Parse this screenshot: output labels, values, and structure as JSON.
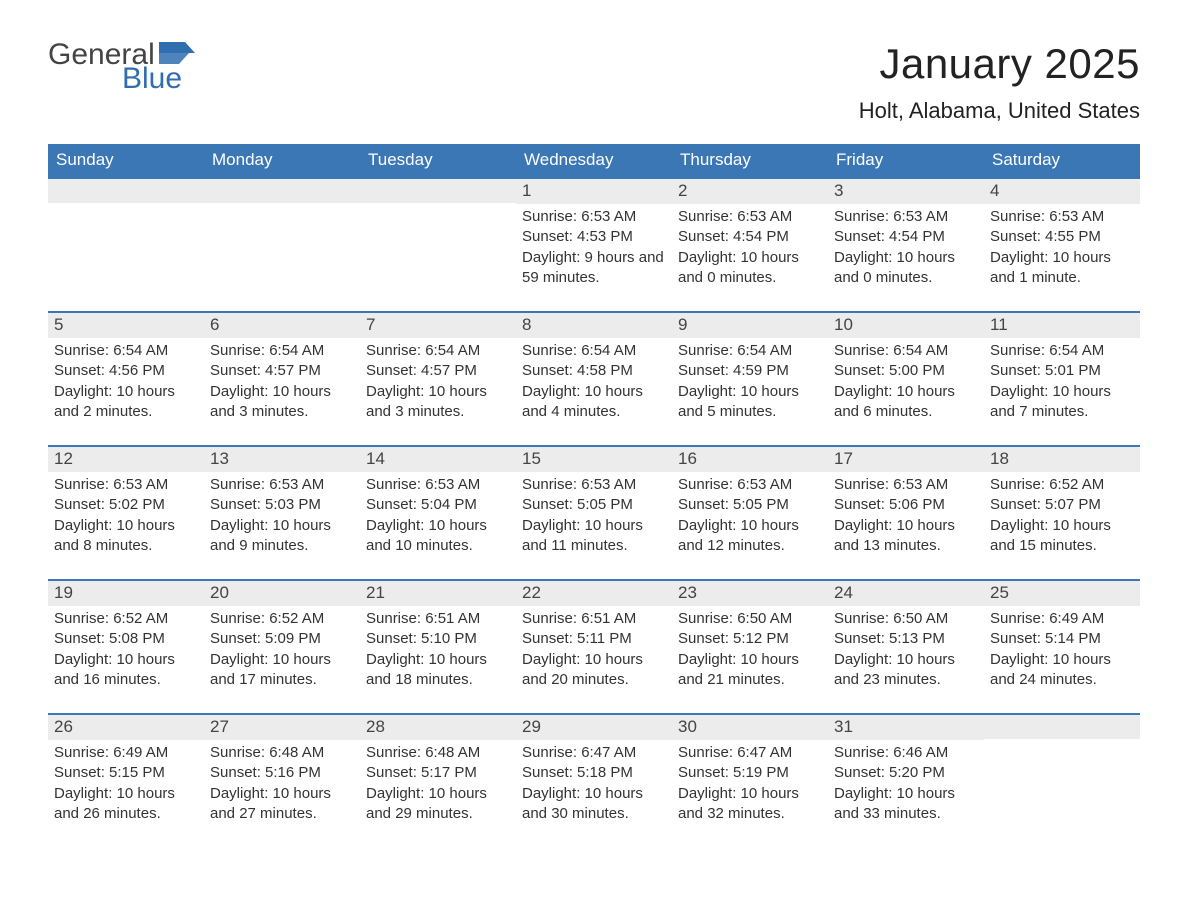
{
  "logo": {
    "text1": "General",
    "text2": "Blue",
    "color_dark": "#444444",
    "color_blue": "#2f6eaf"
  },
  "title": "January 2025",
  "location": "Holt, Alabama, United States",
  "colors": {
    "header_bg": "#3b76b5",
    "header_text": "#ffffff",
    "daynum_bg": "#ececec",
    "border": "#3b76b5",
    "text": "#333333",
    "background": "#ffffff"
  },
  "typography": {
    "title_fontsize": 42,
    "location_fontsize": 22,
    "weekday_fontsize": 17,
    "body_fontsize": 15
  },
  "weekdays": [
    "Sunday",
    "Monday",
    "Tuesday",
    "Wednesday",
    "Thursday",
    "Friday",
    "Saturday"
  ],
  "labels": {
    "sunrise": "Sunrise: ",
    "sunset": "Sunset: ",
    "daylight": "Daylight: "
  },
  "weeks": [
    [
      null,
      null,
      null,
      {
        "n": "1",
        "sunrise": "6:53 AM",
        "sunset": "4:53 PM",
        "daylight": "9 hours and 59 minutes."
      },
      {
        "n": "2",
        "sunrise": "6:53 AM",
        "sunset": "4:54 PM",
        "daylight": "10 hours and 0 minutes."
      },
      {
        "n": "3",
        "sunrise": "6:53 AM",
        "sunset": "4:54 PM",
        "daylight": "10 hours and 0 minutes."
      },
      {
        "n": "4",
        "sunrise": "6:53 AM",
        "sunset": "4:55 PM",
        "daylight": "10 hours and 1 minute."
      }
    ],
    [
      {
        "n": "5",
        "sunrise": "6:54 AM",
        "sunset": "4:56 PM",
        "daylight": "10 hours and 2 minutes."
      },
      {
        "n": "6",
        "sunrise": "6:54 AM",
        "sunset": "4:57 PM",
        "daylight": "10 hours and 3 minutes."
      },
      {
        "n": "7",
        "sunrise": "6:54 AM",
        "sunset": "4:57 PM",
        "daylight": "10 hours and 3 minutes."
      },
      {
        "n": "8",
        "sunrise": "6:54 AM",
        "sunset": "4:58 PM",
        "daylight": "10 hours and 4 minutes."
      },
      {
        "n": "9",
        "sunrise": "6:54 AM",
        "sunset": "4:59 PM",
        "daylight": "10 hours and 5 minutes."
      },
      {
        "n": "10",
        "sunrise": "6:54 AM",
        "sunset": "5:00 PM",
        "daylight": "10 hours and 6 minutes."
      },
      {
        "n": "11",
        "sunrise": "6:54 AM",
        "sunset": "5:01 PM",
        "daylight": "10 hours and 7 minutes."
      }
    ],
    [
      {
        "n": "12",
        "sunrise": "6:53 AM",
        "sunset": "5:02 PM",
        "daylight": "10 hours and 8 minutes."
      },
      {
        "n": "13",
        "sunrise": "6:53 AM",
        "sunset": "5:03 PM",
        "daylight": "10 hours and 9 minutes."
      },
      {
        "n": "14",
        "sunrise": "6:53 AM",
        "sunset": "5:04 PM",
        "daylight": "10 hours and 10 minutes."
      },
      {
        "n": "15",
        "sunrise": "6:53 AM",
        "sunset": "5:05 PM",
        "daylight": "10 hours and 11 minutes."
      },
      {
        "n": "16",
        "sunrise": "6:53 AM",
        "sunset": "5:05 PM",
        "daylight": "10 hours and 12 minutes."
      },
      {
        "n": "17",
        "sunrise": "6:53 AM",
        "sunset": "5:06 PM",
        "daylight": "10 hours and 13 minutes."
      },
      {
        "n": "18",
        "sunrise": "6:52 AM",
        "sunset": "5:07 PM",
        "daylight": "10 hours and 15 minutes."
      }
    ],
    [
      {
        "n": "19",
        "sunrise": "6:52 AM",
        "sunset": "5:08 PM",
        "daylight": "10 hours and 16 minutes."
      },
      {
        "n": "20",
        "sunrise": "6:52 AM",
        "sunset": "5:09 PM",
        "daylight": "10 hours and 17 minutes."
      },
      {
        "n": "21",
        "sunrise": "6:51 AM",
        "sunset": "5:10 PM",
        "daylight": "10 hours and 18 minutes."
      },
      {
        "n": "22",
        "sunrise": "6:51 AM",
        "sunset": "5:11 PM",
        "daylight": "10 hours and 20 minutes."
      },
      {
        "n": "23",
        "sunrise": "6:50 AM",
        "sunset": "5:12 PM",
        "daylight": "10 hours and 21 minutes."
      },
      {
        "n": "24",
        "sunrise": "6:50 AM",
        "sunset": "5:13 PM",
        "daylight": "10 hours and 23 minutes."
      },
      {
        "n": "25",
        "sunrise": "6:49 AM",
        "sunset": "5:14 PM",
        "daylight": "10 hours and 24 minutes."
      }
    ],
    [
      {
        "n": "26",
        "sunrise": "6:49 AM",
        "sunset": "5:15 PM",
        "daylight": "10 hours and 26 minutes."
      },
      {
        "n": "27",
        "sunrise": "6:48 AM",
        "sunset": "5:16 PM",
        "daylight": "10 hours and 27 minutes."
      },
      {
        "n": "28",
        "sunrise": "6:48 AM",
        "sunset": "5:17 PM",
        "daylight": "10 hours and 29 minutes."
      },
      {
        "n": "29",
        "sunrise": "6:47 AM",
        "sunset": "5:18 PM",
        "daylight": "10 hours and 30 minutes."
      },
      {
        "n": "30",
        "sunrise": "6:47 AM",
        "sunset": "5:19 PM",
        "daylight": "10 hours and 32 minutes."
      },
      {
        "n": "31",
        "sunrise": "6:46 AM",
        "sunset": "5:20 PM",
        "daylight": "10 hours and 33 minutes."
      },
      null
    ]
  ]
}
